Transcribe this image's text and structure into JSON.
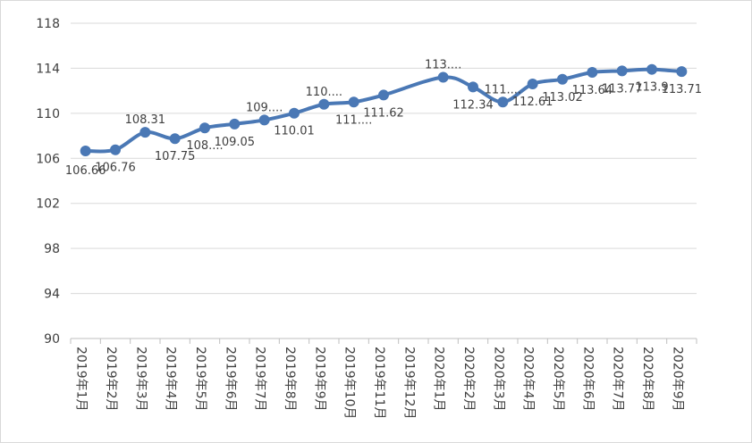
{
  "chart_data": {
    "type": "line",
    "categories": [
      "2019年1月",
      "2019年2月",
      "2019年3月",
      "2019年4月",
      "2019年5月",
      "2019年6月",
      "2019年7月",
      "2019年8月",
      "2019年9月",
      "2019年10月",
      "2019年11月",
      "2019年12月",
      "2020年1月",
      "2020年2月",
      "2020年3月",
      "2020年4月",
      "2020年5月",
      "2020年6月",
      "2020年7月",
      "2020年8月",
      "2020年9月"
    ],
    "values": [
      106.66,
      106.76,
      108.31,
      107.75,
      108.7,
      109.05,
      109.4,
      110.01,
      110.8,
      111.0,
      111.62,
      null,
      113.2,
      112.34,
      111.0,
      112.61,
      113.02,
      113.64,
      113.77,
      113.9,
      113.71
    ],
    "labels": [
      "106.66",
      "106.76",
      "108.31",
      "107.75",
      "108....",
      "109.05",
      "109....",
      "110.01",
      "110....",
      "111....",
      "111.62",
      "",
      "113....",
      "112.34",
      "111....",
      "112.61",
      "113.02",
      "113.64",
      "113.77",
      "113.9",
      "113.71"
    ],
    "yticks": [
      "90",
      "94",
      "98",
      "102",
      "106",
      "110",
      "114",
      "118"
    ],
    "ylim": [
      90,
      118
    ],
    "smooth": true,
    "grid": true,
    "legend": "none",
    "colors": {
      "line": "#4a78b5",
      "grid": "#d9d9d9",
      "axis": "#bfbfbf",
      "text": "#404040"
    }
  }
}
